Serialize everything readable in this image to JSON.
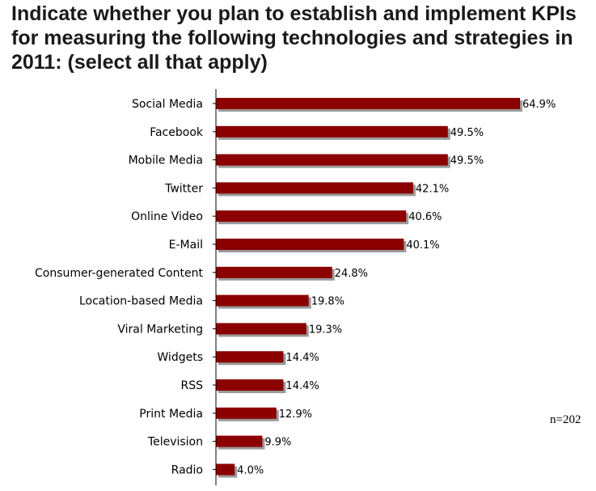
{
  "title": "Indicate whether you plan to establish and implement KPIs for measuring the following technologies and strategies in 2011:  (select all that apply)",
  "note": "n=202",
  "colors": {
    "bar": "#8b0000",
    "shadow": "#9a9a9a",
    "axis": "#000000"
  },
  "chart_data": {
    "type": "bar",
    "orientation": "horizontal",
    "title": "Indicate whether you plan to establish and implement KPIs for measuring the following technologies and strategies in 2011:  (select all that apply)",
    "categories": [
      "Social Media",
      "Facebook",
      "Mobile Media",
      "Twitter",
      "Online Video",
      "E-Mail",
      "Consumer-generated Content",
      "Location-based Media",
      "Viral Marketing",
      "Widgets",
      "RSS",
      "Print Media",
      "Television",
      "Radio"
    ],
    "values": [
      64.9,
      49.5,
      49.5,
      42.1,
      40.6,
      40.1,
      24.8,
      19.8,
      19.3,
      14.4,
      14.4,
      12.9,
      9.9,
      4.0
    ],
    "labels": [
      "64.9%",
      "49.5%",
      "49.5%",
      "42.1%",
      "40.6%",
      "40.1%",
      "24.8%",
      "19.8%",
      "19.3%",
      "14.4%",
      "14.4%",
      "12.9%",
      "9.9%",
      "4.0%"
    ],
    "unit": "%",
    "xlim": [
      0,
      65
    ],
    "grid": false,
    "legend": "none"
  }
}
